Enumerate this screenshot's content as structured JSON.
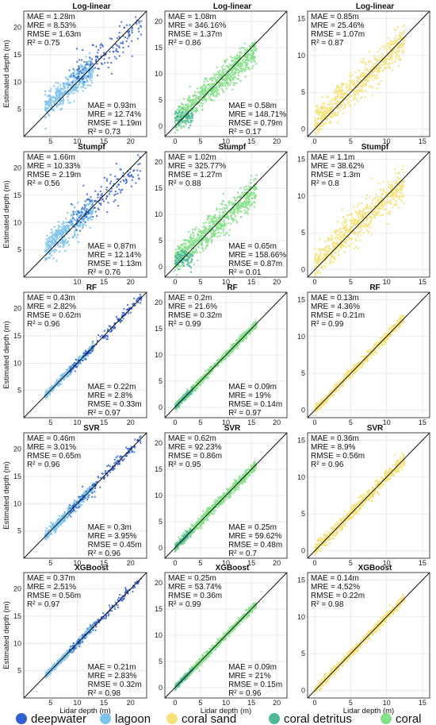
{
  "figure": {
    "xlabel": "Lidar depth (m)",
    "ylabel": "Estimated depth (m)"
  },
  "colors": {
    "deepwater": "#2f5fd0",
    "lagoon": "#7fc3ec",
    "coral sand": "#f6e27a",
    "coral detritus": "#4fb89a",
    "coral": "#86e089"
  },
  "legend": [
    {
      "label": "deepwater",
      "color": "#2f5fd0"
    },
    {
      "label": "lagoon",
      "color": "#7fc3ec"
    },
    {
      "label": "coral sand",
      "color": "#f6e27a"
    },
    {
      "label": "coral detritus",
      "color": "#4fb89a"
    },
    {
      "label": "coral",
      "color": "#86e089"
    }
  ],
  "chart_data": [
    {
      "type": "scatter",
      "title": "Log-linear",
      "xlim": [
        0,
        23
      ],
      "ylim": [
        0,
        23
      ],
      "xticks": [
        5,
        10,
        15,
        20
      ],
      "yticks": [
        5,
        10,
        15,
        20
      ],
      "series": [
        {
          "name": "deepwater"
        },
        {
          "name": "lagoon"
        }
      ],
      "stats_top": {
        "mae": "1.28m",
        "mre": "8.53%",
        "rmse": "1.63m",
        "r2": "0.75"
      },
      "stats_bottom": {
        "mae": "0.93m",
        "mre": "12.74%",
        "rmse": "1.19m",
        "r2": "0.73"
      }
    },
    {
      "type": "scatter",
      "title": "Log-linear",
      "xlim": [
        -2,
        22
      ],
      "ylim": [
        -2,
        22
      ],
      "xticks": [
        0,
        5,
        10,
        15,
        20
      ],
      "yticks": [
        0,
        5,
        10,
        15,
        20
      ],
      "series": [
        {
          "name": "coral"
        },
        {
          "name": "coral detritus"
        }
      ],
      "stats_top": {
        "mae": "1.08m",
        "mre": "346.16%",
        "rmse": "1.37m",
        "r2": "0.86"
      },
      "stats_bottom": {
        "mae": "0.58m",
        "mre": "148.71%",
        "rmse": "0.79m",
        "r2": "0.17"
      }
    },
    {
      "type": "scatter",
      "title": "Log-linear",
      "xlim": [
        -1,
        16
      ],
      "ylim": [
        -1,
        16
      ],
      "xticks": [
        0,
        5,
        10,
        15
      ],
      "yticks": [
        0,
        5,
        10,
        15
      ],
      "series": [
        {
          "name": "coral sand"
        }
      ],
      "stats_top": {
        "mae": "0.85m",
        "mre": "25.46%",
        "rmse": "1.07m",
        "r2": "0.87"
      }
    },
    {
      "type": "scatter",
      "title": "Stumpf",
      "xlim": [
        0,
        23
      ],
      "ylim": [
        0,
        23
      ],
      "xticks": [
        10,
        15,
        20
      ],
      "yticks": [
        5,
        10,
        15,
        20
      ],
      "series": [
        {
          "name": "deepwater"
        },
        {
          "name": "lagoon"
        }
      ],
      "stats_top": {
        "mae": "1.66m",
        "mre": "10.33%",
        "rmse": "2.19m",
        "r2": "0.56"
      },
      "stats_bottom": {
        "mae": "0.87m",
        "mre": "12.14%",
        "rmse": "1.13m",
        "r2": "0.76"
      }
    },
    {
      "type": "scatter",
      "title": "Stumpf",
      "xlim": [
        -2,
        22
      ],
      "ylim": [
        -2,
        22
      ],
      "xticks": [
        0,
        5,
        10,
        15,
        20
      ],
      "yticks": [
        0,
        5,
        10,
        15,
        20
      ],
      "series": [
        {
          "name": "coral"
        },
        {
          "name": "coral detritus"
        }
      ],
      "stats_top": {
        "mae": "1.02m",
        "mre": "325.77%",
        "rmse": "1.27m",
        "r2": "0.88"
      },
      "stats_bottom": {
        "mae": "0.65m",
        "mre": "158.66%",
        "rmse": "0.87m",
        "r2": "0.01"
      }
    },
    {
      "type": "scatter",
      "title": "Stumpf",
      "xlim": [
        -1,
        16
      ],
      "ylim": [
        -1,
        16
      ],
      "xticks": [
        0,
        5,
        10,
        15
      ],
      "yticks": [
        0,
        5,
        10,
        15
      ],
      "series": [
        {
          "name": "coral sand"
        }
      ],
      "stats_top": {
        "mae": "1.1m",
        "mre": "38.62%",
        "rmse": "1.3m",
        "r2": "0.8"
      }
    },
    {
      "type": "scatter",
      "title": "RF",
      "xlim": [
        0,
        23
      ],
      "ylim": [
        0,
        23
      ],
      "xticks": [
        5,
        10,
        15,
        20
      ],
      "yticks": [
        5,
        10,
        15,
        20
      ],
      "series": [
        {
          "name": "deepwater"
        },
        {
          "name": "lagoon"
        }
      ],
      "stats_top": {
        "mae": "0.43m",
        "mre": "2.82%",
        "rmse": "0.62m",
        "r2": "0.96"
      },
      "stats_bottom": {
        "mae": "0.22m",
        "mre": "2.8%",
        "rmse": "0.33m",
        "r2": "0.97"
      }
    },
    {
      "type": "scatter",
      "title": "RF",
      "xlim": [
        -2,
        22
      ],
      "ylim": [
        -2,
        22
      ],
      "xticks": [
        0,
        5,
        10,
        15,
        20
      ],
      "yticks": [
        0,
        5,
        10,
        15,
        20
      ],
      "series": [
        {
          "name": "coral"
        },
        {
          "name": "coral detritus"
        }
      ],
      "stats_top": {
        "mae": "0.2m",
        "mre": "21.6%",
        "rmse": "0.32m",
        "r2": "0.99"
      },
      "stats_bottom": {
        "mae": "0.09m",
        "mre": "19%",
        "rmse": "0.14m",
        "r2": "0.97"
      }
    },
    {
      "type": "scatter",
      "title": "RF",
      "xlim": [
        -1,
        16
      ],
      "ylim": [
        -1,
        16
      ],
      "xticks": [
        0,
        5,
        10,
        15
      ],
      "yticks": [
        0,
        5,
        10,
        15
      ],
      "series": [
        {
          "name": "coral sand"
        }
      ],
      "stats_top": {
        "mae": "0.13m",
        "mre": "4.36%",
        "rmse": "0.21m",
        "r2": "0.99"
      }
    },
    {
      "type": "scatter",
      "title": "SVR",
      "xlim": [
        0,
        23
      ],
      "ylim": [
        0,
        23
      ],
      "xticks": [
        5,
        10,
        15,
        20
      ],
      "yticks": [
        5,
        10,
        15,
        20
      ],
      "series": [
        {
          "name": "deepwater"
        },
        {
          "name": "lagoon"
        }
      ],
      "stats_top": {
        "mae": "0.46m",
        "mre": "3.01%",
        "rmse": "0.65m",
        "r2": "0.96"
      },
      "stats_bottom": {
        "mae": "0.3m",
        "mre": "3.95%",
        "rmse": "0.45m",
        "r2": "0.96"
      }
    },
    {
      "type": "scatter",
      "title": "SVR",
      "xlim": [
        -2,
        22
      ],
      "ylim": [
        -2,
        22
      ],
      "xticks": [
        0,
        5,
        10,
        15,
        20
      ],
      "yticks": [
        0,
        5,
        10,
        15,
        20
      ],
      "series": [
        {
          "name": "coral"
        },
        {
          "name": "coral detritus"
        }
      ],
      "stats_top": {
        "mae": "0.62m",
        "mre": "92.23%",
        "rmse": "0.86m",
        "r2": "0.95"
      },
      "stats_bottom": {
        "mae": "0.25m",
        "mre": "59.62%",
        "rmse": "0.48m",
        "r2": "0.7"
      }
    },
    {
      "type": "scatter",
      "title": "SVR",
      "xlim": [
        -1,
        16
      ],
      "ylim": [
        -1,
        16
      ],
      "xticks": [
        0,
        5,
        10,
        15
      ],
      "yticks": [
        0,
        5,
        10,
        15
      ],
      "series": [
        {
          "name": "coral sand"
        }
      ],
      "stats_top": {
        "mae": "0.36m",
        "mre": "8.9%",
        "rmse": "0.56m",
        "r2": "0.96"
      }
    },
    {
      "type": "scatter",
      "title": "XGBoost",
      "xlim": [
        0,
        23
      ],
      "ylim": [
        0,
        23
      ],
      "xticks": [
        5,
        10,
        15,
        20
      ],
      "yticks": [
        5,
        10,
        15,
        20
      ],
      "series": [
        {
          "name": "deepwater"
        },
        {
          "name": "lagoon"
        }
      ],
      "stats_top": {
        "mae": "0.37m",
        "mre": "2.51%",
        "rmse": "0.56m",
        "r2": "0.97"
      },
      "stats_bottom": {
        "mae": "0.21m",
        "mre": "2.83%",
        "rmse": "0.32m",
        "r2": "0.98"
      }
    },
    {
      "type": "scatter",
      "title": "XGBoost",
      "xlim": [
        -2,
        22
      ],
      "ylim": [
        -2,
        22
      ],
      "xticks": [
        0,
        5,
        10,
        15,
        20
      ],
      "yticks": [
        0,
        5,
        10,
        15,
        20
      ],
      "series": [
        {
          "name": "coral"
        },
        {
          "name": "coral detritus"
        }
      ],
      "stats_top": {
        "mae": "0.25m",
        "mre": "53.74%",
        "rmse": "0.36m",
        "r2": "0.99"
      },
      "stats_bottom": {
        "mae": "0.09m",
        "mre": "21%",
        "rmse": "0.15m",
        "r2": "0.96"
      }
    },
    {
      "type": "scatter",
      "title": "XGBoost",
      "xlim": [
        -1,
        16
      ],
      "ylim": [
        -1,
        16
      ],
      "xticks": [
        0,
        5,
        10,
        15
      ],
      "yticks": [
        0,
        5,
        10,
        15
      ],
      "series": [
        {
          "name": "coral sand"
        }
      ],
      "stats_top": {
        "mae": "0.14m",
        "mre": "4.52%",
        "rmse": "0.22m",
        "r2": "0.98"
      }
    }
  ]
}
